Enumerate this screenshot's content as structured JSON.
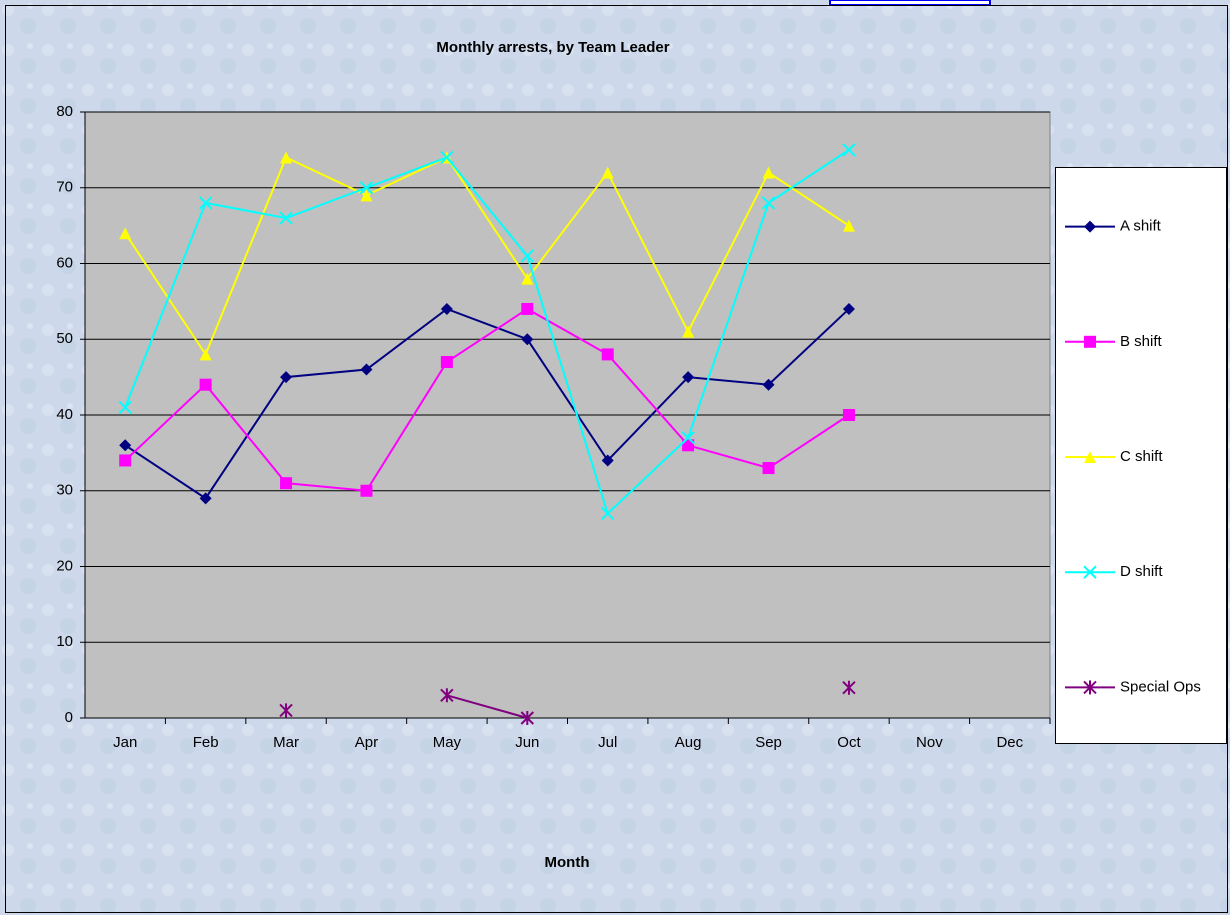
{
  "chart_data": {
    "type": "line",
    "title": "Monthly arrests, by Team Leader",
    "x_label": "Month",
    "categories": [
      "Jan",
      "Feb",
      "Mar",
      "Apr",
      "May",
      "Jun",
      "Jul",
      "Aug",
      "Sep",
      "Oct",
      "Nov",
      "Dec"
    ],
    "series": [
      {
        "name": "A shift",
        "color": "#000080",
        "marker": "diamond",
        "values": [
          36,
          29,
          45,
          46,
          54,
          50,
          34,
          45,
          44,
          54,
          null,
          null
        ]
      },
      {
        "name": "B shift",
        "color": "#ff00ff",
        "marker": "square",
        "values": [
          34,
          44,
          31,
          30,
          47,
          54,
          48,
          36,
          33,
          40,
          null,
          null
        ]
      },
      {
        "name": "C shift",
        "color": "#ffff00",
        "marker": "triangle",
        "values": [
          64,
          48,
          74,
          69,
          74,
          58,
          72,
          51,
          72,
          65,
          null,
          null
        ]
      },
      {
        "name": "D shift",
        "color": "#00ffff",
        "marker": "x",
        "values": [
          41,
          68,
          66,
          70,
          74,
          61,
          27,
          37,
          68,
          75,
          null,
          null
        ]
      },
      {
        "name": "Special Ops",
        "color": "#800080",
        "marker": "star",
        "values": [
          null,
          null,
          1,
          null,
          3,
          0,
          null,
          null,
          null,
          4,
          null,
          null
        ]
      }
    ],
    "ylim": [
      0,
      80
    ],
    "yticks": [
      0,
      10,
      20,
      30,
      40,
      50,
      60,
      70,
      80
    ],
    "grid": true,
    "legend": "right"
  }
}
